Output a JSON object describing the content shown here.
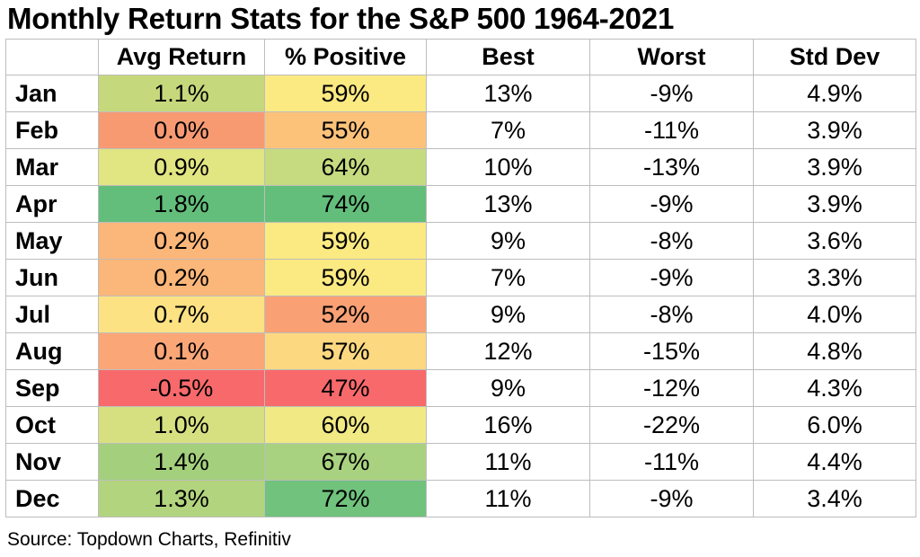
{
  "title": "Monthly Return Stats for the S&P 500  1964-2021",
  "source": "Source: Topdown Charts, Refinitiv",
  "chart_data": {
    "type": "table",
    "columns": [
      "",
      "Avg Return",
      "% Positive",
      "Best",
      "Worst",
      "Std Dev"
    ],
    "rows": [
      {
        "month": "Jan",
        "avg": "1.1%",
        "pos": "59%",
        "best": "13%",
        "worst": "-9%",
        "std": "4.9%",
        "avg_color": "#c6d87c",
        "pos_color": "#fbe982"
      },
      {
        "month": "Feb",
        "avg": "0.0%",
        "pos": "55%",
        "best": "7%",
        "worst": "-11%",
        "std": "3.9%",
        "avg_color": "#f79a72",
        "pos_color": "#fcc27a"
      },
      {
        "month": "Mar",
        "avg": "0.9%",
        "pos": "64%",
        "best": "10%",
        "worst": "-13%",
        "std": "3.9%",
        "avg_color": "#e1e582",
        "pos_color": "#c6da80"
      },
      {
        "month": "Apr",
        "avg": "1.8%",
        "pos": "74%",
        "best": "13%",
        "worst": "-9%",
        "std": "3.9%",
        "avg_color": "#63be7b",
        "pos_color": "#63be7b"
      },
      {
        "month": "May",
        "avg": "0.2%",
        "pos": "59%",
        "best": "9%",
        "worst": "-8%",
        "std": "3.6%",
        "avg_color": "#fbb679",
        "pos_color": "#fbe982"
      },
      {
        "month": "Jun",
        "avg": "0.2%",
        "pos": "59%",
        "best": "7%",
        "worst": "-9%",
        "std": "3.3%",
        "avg_color": "#fbb679",
        "pos_color": "#fbe982"
      },
      {
        "month": "Jul",
        "avg": "0.7%",
        "pos": "52%",
        "best": "9%",
        "worst": "-8%",
        "std": "4.0%",
        "avg_color": "#fde283",
        "pos_color": "#f9a075"
      },
      {
        "month": "Aug",
        "avg": "0.1%",
        "pos": "57%",
        "best": "12%",
        "worst": "-15%",
        "std": "4.8%",
        "avg_color": "#fba677",
        "pos_color": "#fcd880"
      },
      {
        "month": "Sep",
        "avg": "-0.5%",
        "pos": "47%",
        "best": "9%",
        "worst": "-12%",
        "std": "4.3%",
        "avg_color": "#f8696b",
        "pos_color": "#f8696b"
      },
      {
        "month": "Oct",
        "avg": "1.0%",
        "pos": "60%",
        "best": "16%",
        "worst": "-22%",
        "std": "6.0%",
        "avg_color": "#d7e081",
        "pos_color": "#f0e984"
      },
      {
        "month": "Nov",
        "avg": "1.4%",
        "pos": "67%",
        "best": "11%",
        "worst": "-11%",
        "std": "4.4%",
        "avg_color": "#a4d07d",
        "pos_color": "#a8d27f"
      },
      {
        "month": "Dec",
        "avg": "1.3%",
        "pos": "72%",
        "best": "11%",
        "worst": "-9%",
        "std": "3.4%",
        "avg_color": "#b2d47e",
        "pos_color": "#70c27c"
      }
    ]
  }
}
